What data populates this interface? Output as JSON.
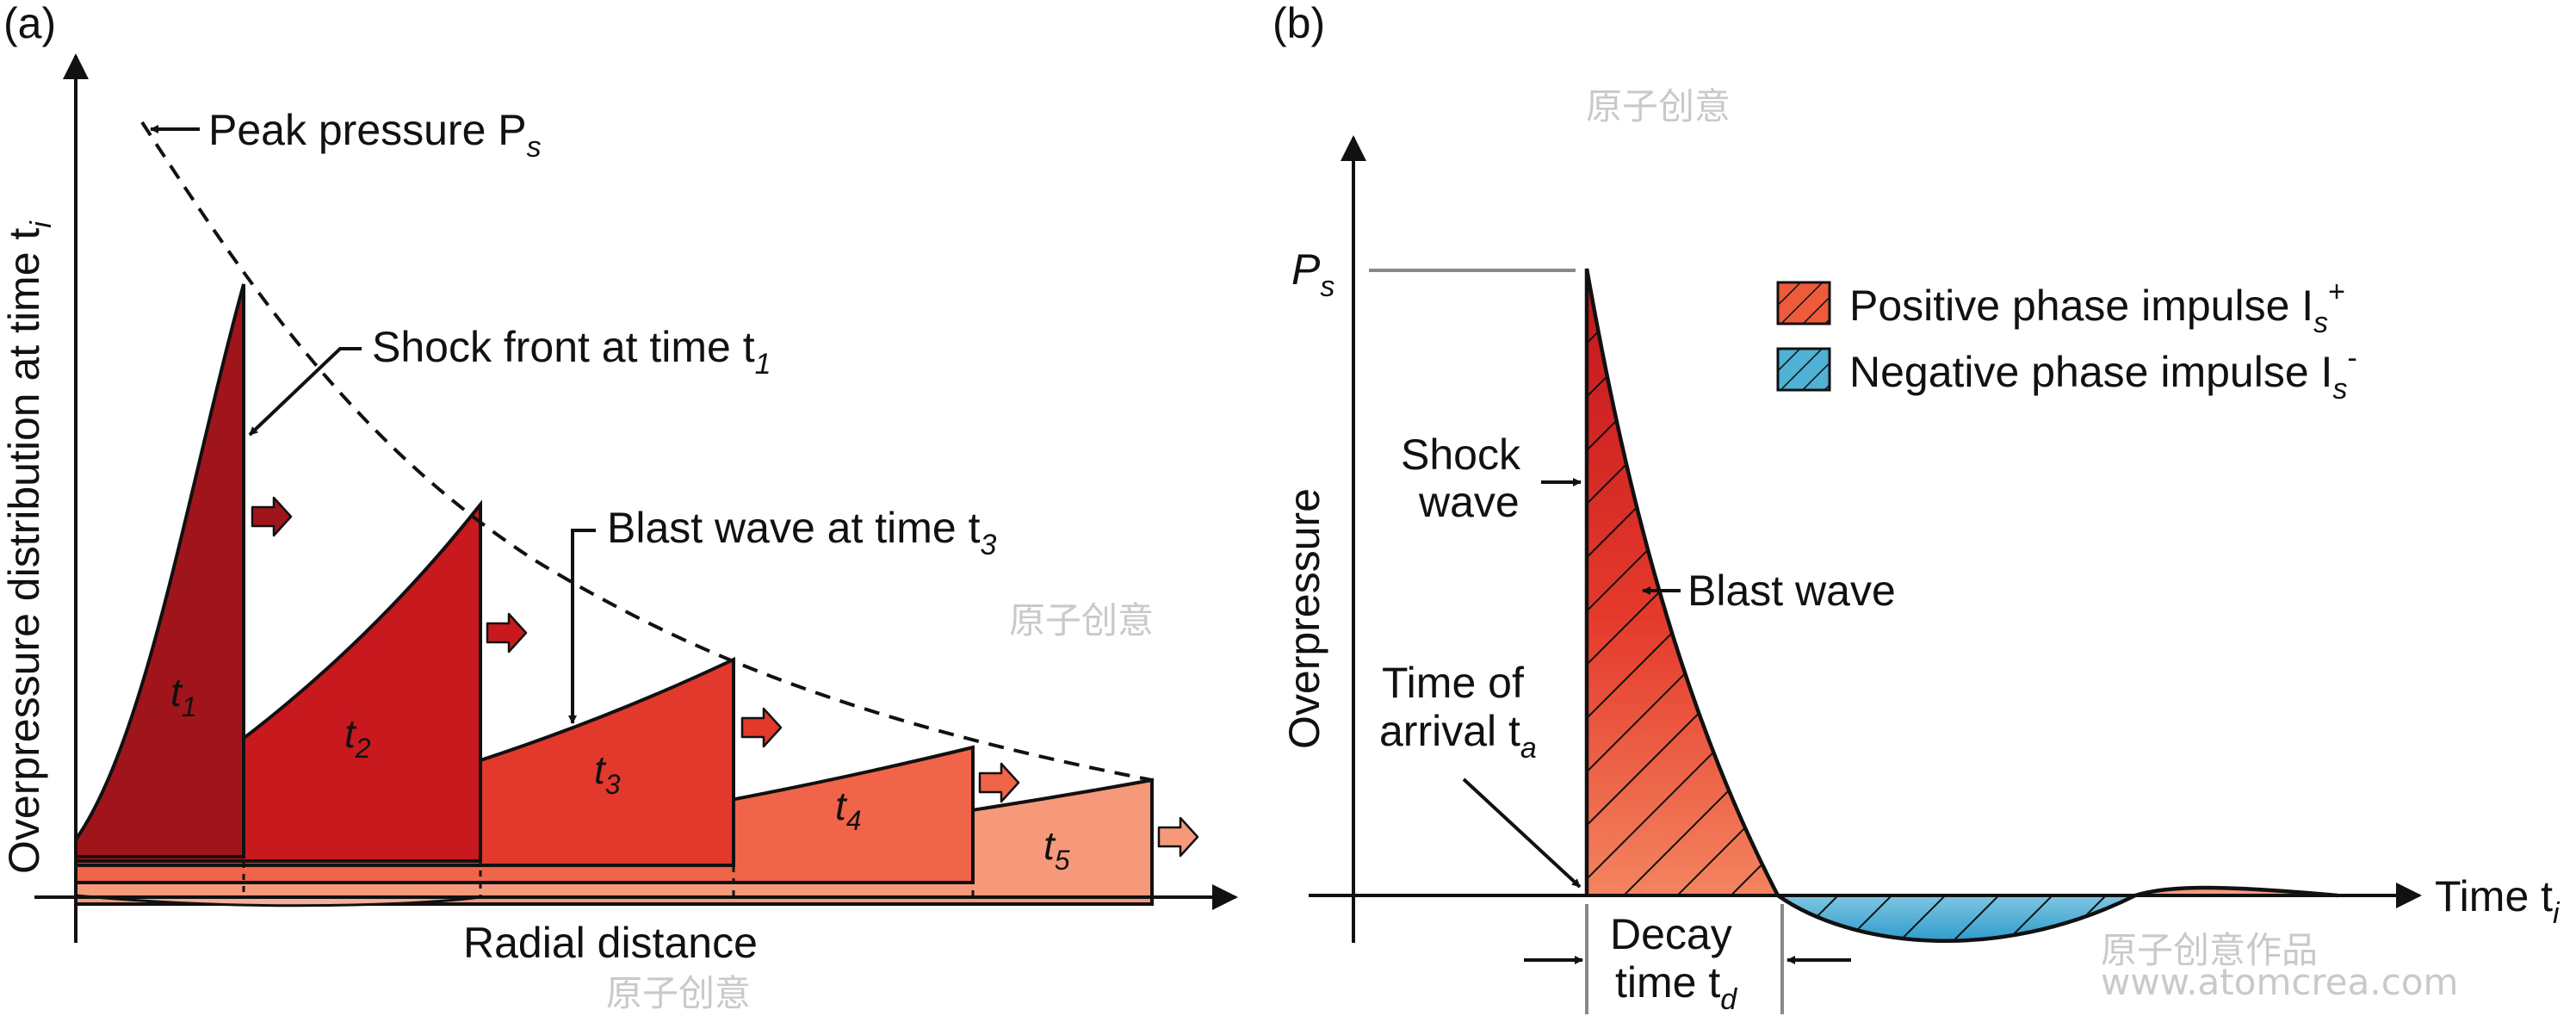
{
  "panel_a": {
    "label": "(a)",
    "y_axis_label": "Overpressure distribution at time t",
    "y_axis_label_sub": "i",
    "x_axis_label": "Radial distance",
    "peak_label": "Peak pressure P",
    "peak_label_sub": "s",
    "shock_front_label": "Shock front at time t",
    "shock_front_sub": "1",
    "blast_wave_label": "Blast wave at time t",
    "blast_wave_sub": "3",
    "waves": [
      {
        "t": "t",
        "sub": "1",
        "color": "#a0151c"
      },
      {
        "t": "t",
        "sub": "2",
        "color": "#c8191f"
      },
      {
        "t": "t",
        "sub": "3",
        "color": "#e3392c"
      },
      {
        "t": "t",
        "sub": "4",
        "color": "#f0654a"
      },
      {
        "t": "t",
        "sub": "5",
        "color": "#f6997b"
      }
    ]
  },
  "panel_b": {
    "label": "(b)",
    "y_axis_label": "Overpressure",
    "x_axis_label": "Time t",
    "x_axis_sub": "i",
    "ps_label": "P",
    "ps_sub": "s",
    "shock_wave_label": [
      "Shock",
      "wave"
    ],
    "blast_wave_label": "Blast wave",
    "arrival_label_1": "Time of",
    "arrival_label_2": "arrival t",
    "arrival_sub": "a",
    "decay_label_1": "Decay",
    "decay_label_2": "time t",
    "decay_sub": "d",
    "legend": [
      {
        "label": "Positive phase impulse I",
        "sub": "s",
        "sup": "+",
        "color": "#ee5a3c"
      },
      {
        "label": "Negative phase impulse I",
        "sub": "s",
        "sup": "-",
        "color": "#4fb2d4"
      }
    ]
  },
  "watermarks": [
    "原子创意",
    "原子创意",
    "原子创意",
    "原子创意作品",
    "www.atomcrea.com"
  ]
}
